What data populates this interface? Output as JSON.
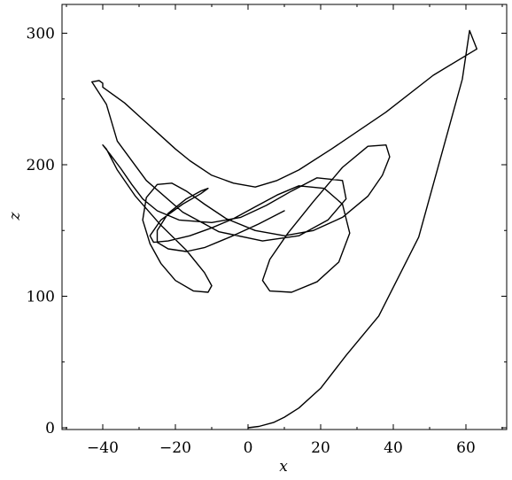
{
  "chart_data": {
    "type": "line",
    "title": "",
    "xlabel": "x",
    "ylabel": "z",
    "xlim": [
      -50,
      70
    ],
    "ylim": [
      0,
      305
    ],
    "xticks": [
      -40,
      -20,
      0,
      20,
      40,
      60
    ],
    "xtick_labels": [
      "−40",
      "−20",
      "0",
      "20",
      "40",
      "60"
    ],
    "yticks": [
      0,
      100,
      200,
      300
    ],
    "ytick_labels": [
      "0",
      "100",
      "200",
      "300"
    ],
    "grid": false,
    "legend": "none",
    "series": [
      {
        "x": [
          0,
          3,
          7,
          10,
          14,
          20,
          27,
          36,
          47,
          55,
          59,
          61,
          63,
          51,
          38,
          23,
          14,
          8,
          2,
          -4,
          -10,
          -16,
          -20,
          -24,
          -28,
          -34,
          -40,
          -40,
          -41,
          -43,
          -39,
          -36,
          -28,
          -18,
          -8,
          4,
          14,
          22,
          27,
          26,
          19,
          12,
          5,
          -2,
          -10,
          -19,
          -25,
          -29,
          -32,
          -35,
          -38,
          -40,
          -39,
          -36,
          -31,
          -24,
          -17,
          -12,
          -10,
          -11,
          -15,
          -20,
          -24,
          -27,
          -29,
          -28,
          -25,
          -21,
          -17,
          -12,
          -6,
          2,
          10,
          18,
          26,
          33,
          37,
          39,
          38,
          33,
          26,
          18,
          11,
          6,
          4,
          6,
          12,
          19,
          25,
          28,
          26,
          21,
          14,
          8,
          2,
          -4,
          -10,
          -16,
          -22,
          -26,
          -27,
          -24,
          -18,
          -13,
          -11,
          -13,
          -17,
          -22,
          -25,
          -25,
          -22,
          -17,
          -12,
          -5,
          3,
          10
        ],
        "y": [
          0,
          1,
          4,
          8,
          15,
          30,
          55,
          85,
          145,
          225,
          265,
          302,
          288,
          268,
          240,
          212,
          196,
          188,
          183,
          186,
          192,
          203,
          212,
          222,
          232,
          247,
          259,
          262,
          264,
          263,
          246,
          218,
          188,
          164,
          149,
          142,
          146,
          158,
          174,
          188,
          190,
          180,
          169,
          160,
          156,
          158,
          165,
          174,
          185,
          197,
          208,
          215,
          212,
          196,
          176,
          154,
          135,
          118,
          108,
          103,
          104,
          112,
          125,
          140,
          158,
          175,
          185,
          186,
          180,
          170,
          159,
          150,
          146,
          150,
          160,
          176,
          192,
          206,
          215,
          214,
          198,
          172,
          148,
          128,
          112,
          104,
          103,
          111,
          126,
          148,
          170,
          182,
          184,
          177,
          168,
          159,
          152,
          146,
          142,
          141,
          146,
          158,
          170,
          178,
          182,
          180,
          174,
          163,
          150,
          141,
          136,
          134,
          137,
          145,
          155,
          165
        ]
      }
    ]
  }
}
